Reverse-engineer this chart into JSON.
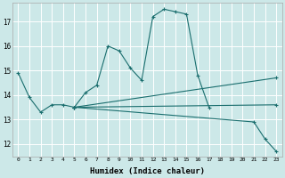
{
  "xlabel": "Humidex (Indice chaleur)",
  "background_color": "#cce8e8",
  "line_color": "#1a6e6e",
  "grid_color": "#ffffff",
  "xlim": [
    -0.5,
    23.5
  ],
  "ylim": [
    11.5,
    17.75
  ],
  "yticks": [
    12,
    13,
    14,
    15,
    16,
    17
  ],
  "xticks": [
    0,
    1,
    2,
    3,
    4,
    5,
    6,
    7,
    8,
    9,
    10,
    11,
    12,
    13,
    14,
    15,
    16,
    17,
    18,
    19,
    20,
    21,
    22,
    23
  ],
  "series": [
    {
      "x": [
        0,
        1,
        2,
        3,
        4,
        5,
        6,
        7,
        8,
        9,
        10,
        11,
        12,
        13,
        14,
        15,
        16,
        17
      ],
      "y": [
        14.9,
        13.9,
        13.3,
        13.6,
        13.6,
        13.5,
        14.1,
        14.4,
        16.0,
        15.8,
        15.1,
        14.6,
        17.2,
        17.5,
        17.4,
        17.3,
        14.8,
        13.5
      ]
    },
    {
      "x": [
        5,
        23
      ],
      "y": [
        13.5,
        13.6
      ]
    },
    {
      "x": [
        5,
        23
      ],
      "y": [
        13.5,
        14.7
      ]
    },
    {
      "x": [
        5,
        21,
        22,
        23
      ],
      "y": [
        13.5,
        12.9,
        12.2,
        11.7
      ]
    }
  ]
}
